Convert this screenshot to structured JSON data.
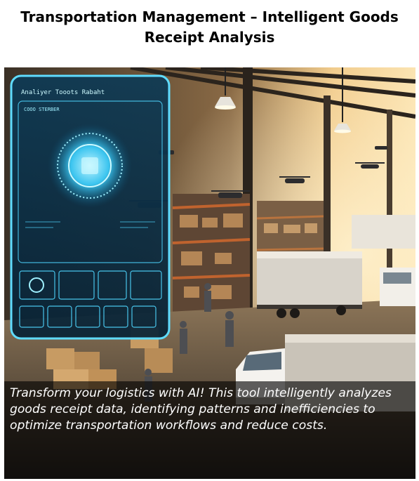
{
  "page": {
    "title": "Transportation Management – Intelligent Goods Receipt Analysis"
  },
  "hero": {
    "caption": "Transform your logistics with AI! This tool intelligently analyzes goods receipt data, identifying patterns and inefficiencies to optimize transportation workflows and reduce costs.",
    "screen_title": "Analiyer Tooots Rabaht",
    "screen_subtitle": "COOO STERBER"
  },
  "colors": {
    "title_text": "#000000",
    "caption_text": "#ffffff",
    "caption_background": "#000000",
    "hologram": "#4fd6ff"
  }
}
